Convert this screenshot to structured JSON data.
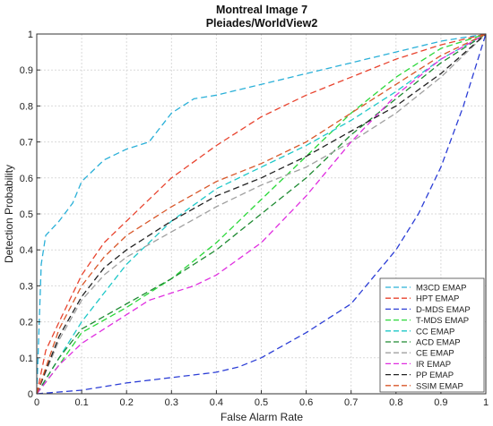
{
  "chart_data": {
    "type": "line",
    "title": "Montreal Image 7",
    "subtitle": "Pleiades/WorldView2",
    "xlabel": "False Alarm Rate",
    "ylabel": "Detection Probability",
    "xlim": [
      0,
      1
    ],
    "ylim": [
      0,
      1
    ],
    "xticks": [
      "0",
      "0.1",
      "0.2",
      "0.3",
      "0.4",
      "0.5",
      "0.6",
      "0.7",
      "0.8",
      "0.9",
      "1"
    ],
    "yticks": [
      "0",
      "0.1",
      "0.2",
      "0.3",
      "0.4",
      "0.5",
      "0.6",
      "0.7",
      "0.8",
      "0.9",
      "1"
    ],
    "grid": true,
    "legend_position": "bottom-right",
    "series": [
      {
        "name": "M3CD EMAP",
        "color": "#2ab0d8",
        "x": [
          0,
          0.01,
          0.02,
          0.05,
          0.08,
          0.1,
          0.15,
          0.2,
          0.25,
          0.3,
          0.35,
          0.4,
          0.5,
          0.6,
          0.7,
          0.8,
          0.9,
          1
        ],
        "y": [
          0,
          0.36,
          0.44,
          0.48,
          0.53,
          0.59,
          0.65,
          0.68,
          0.7,
          0.78,
          0.82,
          0.83,
          0.86,
          0.89,
          0.92,
          0.95,
          0.98,
          1
        ]
      },
      {
        "name": "HPT EMAP",
        "color": "#e8432e",
        "x": [
          0,
          0.02,
          0.05,
          0.1,
          0.15,
          0.2,
          0.3,
          0.4,
          0.5,
          0.6,
          0.7,
          0.8,
          0.9,
          1
        ],
        "y": [
          0,
          0.12,
          0.2,
          0.33,
          0.42,
          0.48,
          0.6,
          0.69,
          0.77,
          0.83,
          0.88,
          0.93,
          0.97,
          1
        ]
      },
      {
        "name": "D-MDS EMAP",
        "color": "#2c3ed6",
        "x": [
          0,
          0.1,
          0.2,
          0.3,
          0.4,
          0.45,
          0.5,
          0.6,
          0.7,
          0.8,
          0.85,
          0.9,
          0.95,
          1
        ],
        "y": [
          0,
          0.01,
          0.03,
          0.045,
          0.06,
          0.075,
          0.1,
          0.17,
          0.25,
          0.4,
          0.5,
          0.63,
          0.8,
          1
        ]
      },
      {
        "name": "T-MDS EMAP",
        "color": "#2bd83a",
        "x": [
          0,
          0.05,
          0.1,
          0.2,
          0.3,
          0.4,
          0.5,
          0.6,
          0.7,
          0.8,
          0.9,
          1
        ],
        "y": [
          0,
          0.08,
          0.17,
          0.24,
          0.32,
          0.42,
          0.54,
          0.66,
          0.78,
          0.88,
          0.96,
          1
        ]
      },
      {
        "name": "CC EMAP",
        "color": "#1ec8c8",
        "x": [
          0,
          0.05,
          0.1,
          0.15,
          0.2,
          0.3,
          0.4,
          0.5,
          0.6,
          0.7,
          0.8,
          0.9,
          1
        ],
        "y": [
          0,
          0.1,
          0.2,
          0.28,
          0.36,
          0.48,
          0.57,
          0.63,
          0.69,
          0.76,
          0.84,
          0.93,
          1
        ]
      },
      {
        "name": "ACD EMAP",
        "color": "#1e8a32",
        "x": [
          0,
          0.05,
          0.1,
          0.2,
          0.3,
          0.4,
          0.5,
          0.6,
          0.7,
          0.8,
          0.9,
          1
        ],
        "y": [
          0,
          0.1,
          0.18,
          0.25,
          0.32,
          0.4,
          0.5,
          0.6,
          0.72,
          0.82,
          0.92,
          1
        ]
      },
      {
        "name": "CE EMAP",
        "color": "#a0a0a0",
        "x": [
          0,
          0.05,
          0.1,
          0.15,
          0.2,
          0.3,
          0.4,
          0.5,
          0.6,
          0.7,
          0.8,
          0.9,
          1
        ],
        "y": [
          0,
          0.15,
          0.26,
          0.33,
          0.38,
          0.45,
          0.52,
          0.58,
          0.63,
          0.7,
          0.78,
          0.88,
          1
        ]
      },
      {
        "name": "IR EMAP",
        "color": "#e02ee0",
        "x": [
          0,
          0.05,
          0.1,
          0.15,
          0.2,
          0.25,
          0.3,
          0.35,
          0.4,
          0.5,
          0.6,
          0.7,
          0.8,
          0.9,
          1
        ],
        "y": [
          0,
          0.08,
          0.14,
          0.18,
          0.22,
          0.26,
          0.28,
          0.3,
          0.33,
          0.42,
          0.55,
          0.7,
          0.83,
          0.93,
          1
        ]
      },
      {
        "name": "PP EMAP",
        "color": "#222222",
        "x": [
          0,
          0.05,
          0.1,
          0.15,
          0.2,
          0.3,
          0.4,
          0.5,
          0.6,
          0.7,
          0.8,
          0.9,
          1
        ],
        "y": [
          0,
          0.16,
          0.27,
          0.35,
          0.4,
          0.48,
          0.55,
          0.6,
          0.66,
          0.73,
          0.8,
          0.89,
          1
        ]
      },
      {
        "name": "SSIM EMAP",
        "color": "#d8572a",
        "x": [
          0,
          0.05,
          0.1,
          0.15,
          0.2,
          0.3,
          0.4,
          0.5,
          0.6,
          0.7,
          0.8,
          0.9,
          1
        ],
        "y": [
          0,
          0.18,
          0.3,
          0.38,
          0.44,
          0.52,
          0.59,
          0.64,
          0.7,
          0.78,
          0.86,
          0.94,
          1
        ]
      }
    ]
  }
}
